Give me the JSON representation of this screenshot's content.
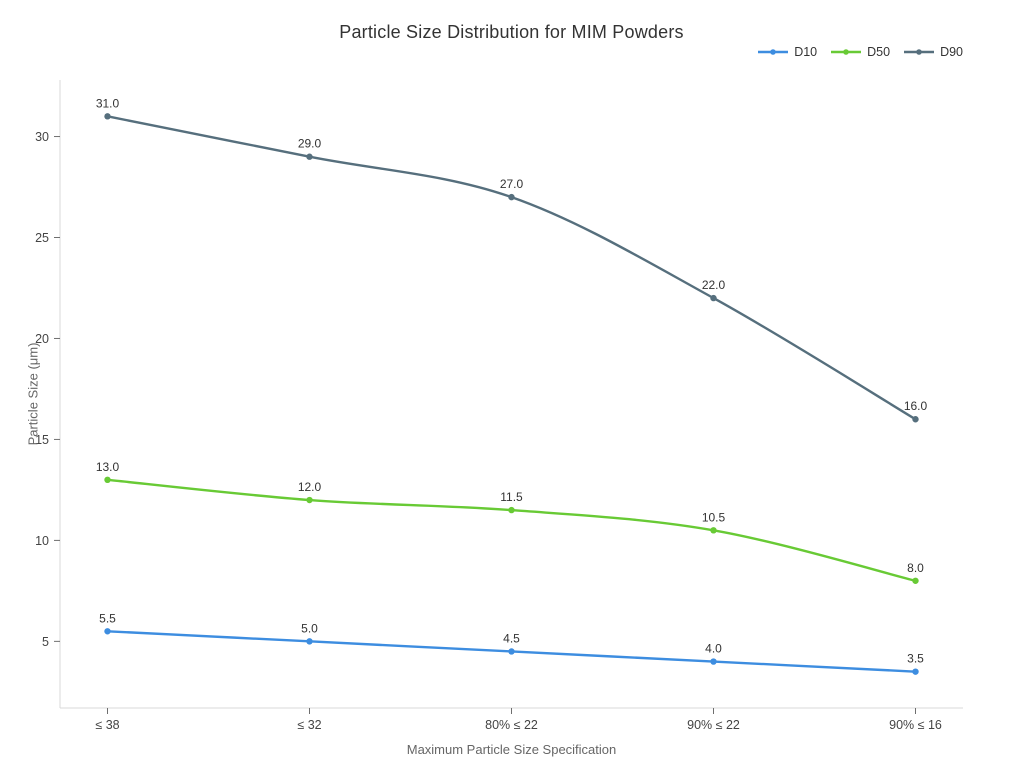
{
  "chart_data": {
    "type": "line",
    "title": "Particle Size Distribution for MIM Powders",
    "xlabel": "Maximum Particle Size Specification",
    "ylabel": "Particle Size (μm)",
    "categories": [
      "≤ 38",
      "≤ 32",
      "80% ≤ 22",
      "90% ≤ 22",
      "90% ≤ 16"
    ],
    "series": [
      {
        "name": "D10",
        "color": "#3d8de0",
        "values": [
          5.5,
          5.0,
          4.5,
          4.0,
          3.5
        ]
      },
      {
        "name": "D50",
        "color": "#68ca35",
        "values": [
          13.0,
          12.0,
          11.5,
          10.5,
          8.0
        ]
      },
      {
        "name": "D90",
        "color": "#566f7d",
        "values": [
          31.0,
          29.0,
          27.0,
          22.0,
          16.0
        ]
      }
    ],
    "yticks": [
      5,
      10,
      15,
      20,
      25,
      30
    ],
    "ylim": [
      1.7,
      32.8
    ],
    "grid": false,
    "line_shape": "spline",
    "markers": true,
    "data_labels": "one-decimal",
    "legend_position": "top-right",
    "axis_line_color": "#d9d9d9",
    "tick_color": "#6e6e6e"
  }
}
